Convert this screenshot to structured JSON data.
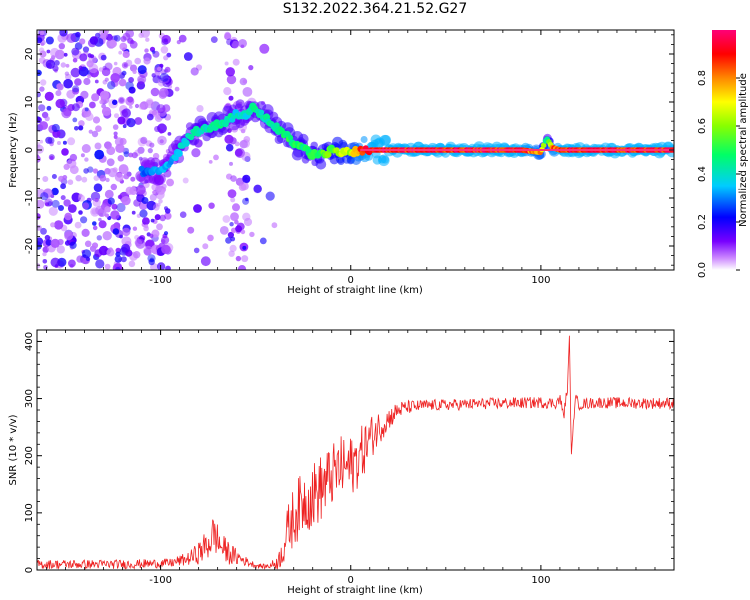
{
  "title": "S132.2022.364.21.52.G27",
  "colors": {
    "snr_line": "#ee2222",
    "zero_line": "#ff3377",
    "colormap": [
      "#ffffff",
      "#6600ff",
      "#0000ff",
      "#00ffff",
      "#00ff00",
      "#ffff00",
      "#ff8800",
      "#ff0000",
      "#ff0066"
    ]
  },
  "chart_data": [
    {
      "type": "heatmap",
      "xlabel": "Height of straight line (km)",
      "ylabel": "Frequency (Hz)",
      "xlim": [
        -165,
        170
      ],
      "ylim": [
        -25,
        25
      ],
      "x_ticks": [
        -100,
        0,
        100
      ],
      "y_ticks": [
        -20,
        -10,
        0,
        10,
        20
      ],
      "grid": false,
      "colorbar": {
        "label": "Normalized spectral amplitude",
        "range": [
          0.0,
          1.0
        ],
        "ticks": [
          0.0,
          0.2,
          0.4,
          0.6,
          0.8
        ]
      },
      "ridge": {
        "x": [
          -108,
          -100,
          -95,
          -90,
          -85,
          -80,
          -75,
          -70,
          -65,
          -60,
          -55,
          -50,
          -45,
          -40,
          -35,
          -30,
          -25,
          -20,
          -15,
          -10,
          -5,
          0,
          5,
          10,
          30,
          60,
          90,
          100,
          103,
          106,
          110,
          140,
          170
        ],
        "y": [
          -4.5,
          -4.5,
          -3,
          0,
          3,
          4,
          4.5,
          5.5,
          6,
          7.5,
          7.5,
          9,
          6.5,
          5,
          3.5,
          1.5,
          0.5,
          -1,
          -1,
          0,
          -0.5,
          -0.5,
          0,
          0,
          0,
          0,
          0,
          -0.5,
          2.5,
          0.5,
          0,
          0,
          0
        ],
        "amplitude": [
          0.3,
          0.35,
          0.35,
          0.4,
          0.4,
          0.45,
          0.45,
          0.45,
          0.45,
          0.4,
          0.4,
          0.45,
          0.45,
          0.45,
          0.5,
          0.5,
          0.5,
          0.5,
          0.55,
          0.6,
          0.65,
          0.7,
          0.85,
          0.95,
          0.95,
          0.95,
          0.95,
          0.8,
          0.4,
          0.85,
          0.95,
          0.95,
          0.95
        ]
      }
    },
    {
      "type": "line",
      "xlabel": "Height of straight line (km)",
      "ylabel": "SNR (10 * v/v)",
      "xlim": [
        -165,
        170
      ],
      "ylim": [
        0,
        420
      ],
      "x_ticks": [
        -100,
        0,
        100
      ],
      "y_ticks": [
        0,
        100,
        200,
        300,
        400
      ],
      "grid": false,
      "series": [
        {
          "x": [
            -165,
            -120,
            -95,
            -85,
            -80,
            -75,
            -72,
            -68,
            -62,
            -58,
            -55,
            -50,
            -45,
            -42,
            -38,
            -35,
            -32,
            -28,
            -25,
            -20,
            -15,
            -10,
            -5,
            0,
            5,
            10,
            15,
            20,
            25,
            30,
            40,
            60,
            80,
            100,
            108,
            110,
            112,
            114,
            115,
            116,
            118,
            120,
            130,
            150,
            170
          ],
          "y": [
            10,
            10,
            12,
            20,
            30,
            45,
            65,
            40,
            25,
            20,
            15,
            8,
            6,
            8,
            15,
            45,
            80,
            105,
            120,
            130,
            145,
            165,
            180,
            180,
            200,
            230,
            250,
            265,
            280,
            285,
            288,
            290,
            292,
            293,
            292,
            300,
            270,
            320,
            410,
            200,
            300,
            290,
            293,
            292,
            292
          ],
          "noise": [
            8,
            8,
            8,
            12,
            20,
            30,
            35,
            25,
            18,
            12,
            8,
            5,
            4,
            6,
            15,
            35,
            50,
            55,
            55,
            60,
            60,
            55,
            55,
            55,
            50,
            40,
            30,
            20,
            15,
            12,
            10,
            10,
            10,
            10,
            10,
            10,
            10,
            10,
            0,
            0,
            10,
            10,
            10,
            10,
            10
          ]
        }
      ]
    }
  ]
}
